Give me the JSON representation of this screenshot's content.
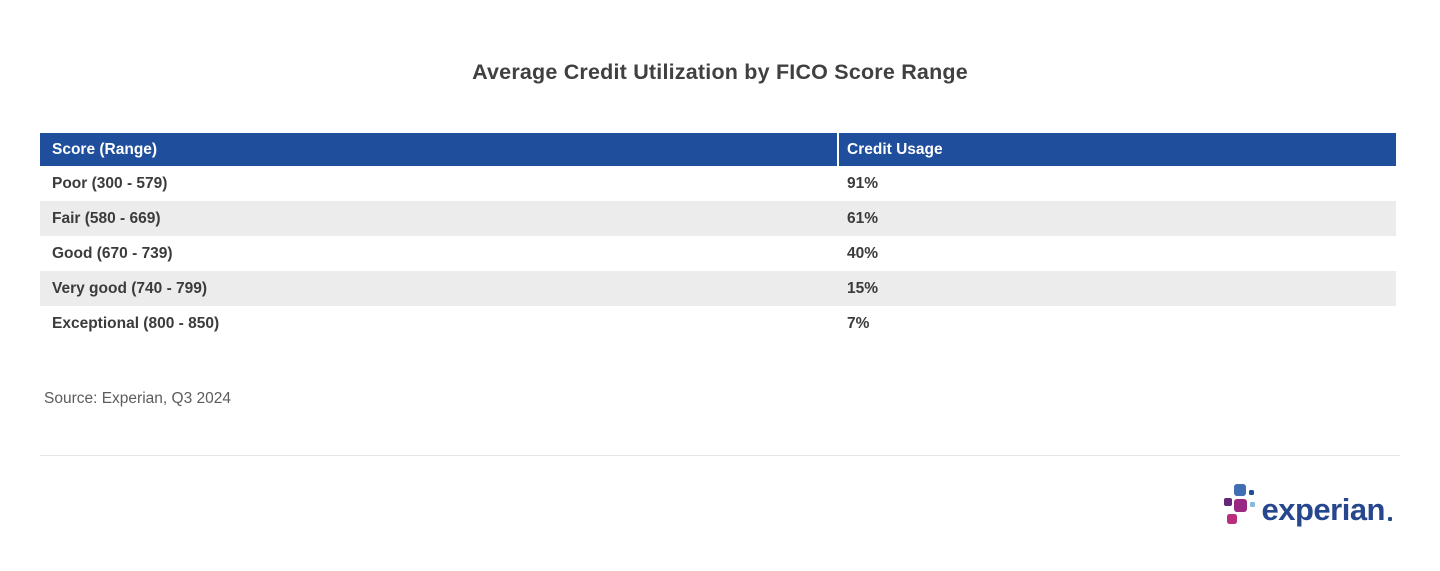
{
  "title": "Average Credit Utilization by FICO Score Range",
  "table": {
    "columns": {
      "score_range": "Score (Range)",
      "credit_usage": "Credit Usage"
    },
    "rows": [
      {
        "score_range": "Poor (300 - 579)",
        "credit_usage": "91%"
      },
      {
        "score_range": "Fair (580 - 669)",
        "credit_usage": "61%"
      },
      {
        "score_range": "Good (670 - 739)",
        "credit_usage": "40%"
      },
      {
        "score_range": "Very good (740 - 799)",
        "credit_usage": "15%"
      },
      {
        "score_range": "Exceptional (800 - 850)",
        "credit_usage": "7%"
      }
    ]
  },
  "source": "Source: Experian, Q3 2024",
  "logo": {
    "wordmark": "experian"
  },
  "chart_data": {
    "type": "table",
    "title": "Average Credit Utilization by FICO Score Range",
    "columns": [
      "Score (Range)",
      "Credit Usage"
    ],
    "categories": [
      "Poor (300 - 579)",
      "Fair (580 - 669)",
      "Good (670 - 739)",
      "Very good (740 - 799)",
      "Exceptional (800 - 850)"
    ],
    "values_percent": [
      91,
      61,
      40,
      15,
      7
    ],
    "source": "Source: Experian, Q3 2024",
    "legend_position": "none",
    "grid": false
  },
  "colors": {
    "header_bg": "#1f4e9c",
    "header_text": "#ffffff",
    "row_alt_bg": "#ececec",
    "row_text": "#3b3b3b",
    "title_text": "#404040",
    "source_text": "#5c5c5c",
    "divider": "#e6e6e6",
    "logo_text": "#26478d",
    "logo_dot_blue": "#406eb3",
    "logo_dot_darkblue": "#1d4f91",
    "logo_dot_lightblue": "#85b9dd",
    "logo_dot_purple": "#632678",
    "logo_dot_magenta": "#982881",
    "logo_dot_pink": "#ba2f7d"
  }
}
